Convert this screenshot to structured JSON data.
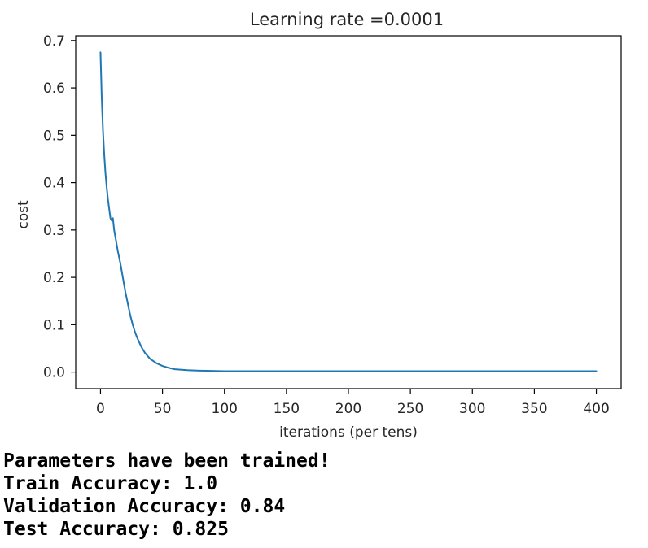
{
  "chart_data": {
    "type": "line",
    "title": "Learning rate =0.0001",
    "xlabel": "iterations (per tens)",
    "ylabel": "cost",
    "xlim": [
      -20,
      420
    ],
    "ylim": [
      -0.035,
      0.71
    ],
    "xticks": [
      0,
      50,
      100,
      150,
      200,
      250,
      300,
      350,
      400
    ],
    "yticks": [
      0.0,
      0.1,
      0.2,
      0.3,
      0.4,
      0.5,
      0.6,
      0.7
    ],
    "xtick_labels": [
      "0",
      "50",
      "100",
      "150",
      "200",
      "250",
      "300",
      "350",
      "400"
    ],
    "ytick_labels": [
      "0.0",
      "0.1",
      "0.2",
      "0.3",
      "0.4",
      "0.5",
      "0.6",
      "0.7"
    ],
    "grid": false,
    "legend": false,
    "series": [
      {
        "color": "#1f77b4",
        "x": [
          0,
          1,
          2,
          3,
          4,
          5,
          6,
          7,
          8,
          9,
          10,
          11,
          12,
          14,
          16,
          18,
          20,
          22,
          24,
          26,
          28,
          30,
          33,
          36,
          40,
          45,
          50,
          55,
          60,
          70,
          80,
          100,
          150,
          200,
          300,
          400
        ],
        "y": [
          0.675,
          0.58,
          0.51,
          0.46,
          0.42,
          0.39,
          0.365,
          0.345,
          0.325,
          0.32,
          0.325,
          0.3,
          0.285,
          0.255,
          0.23,
          0.2,
          0.17,
          0.145,
          0.12,
          0.1,
          0.083,
          0.07,
          0.053,
          0.04,
          0.028,
          0.019,
          0.013,
          0.009,
          0.006,
          0.004,
          0.003,
          0.002,
          0.002,
          0.002,
          0.002,
          0.002
        ]
      }
    ]
  },
  "output": {
    "line1": "Parameters have been trained!",
    "line2": "Train Accuracy: 1.0",
    "line3": "Validation Accuracy: 0.84",
    "line4": "Test Accuracy: 0.825"
  }
}
